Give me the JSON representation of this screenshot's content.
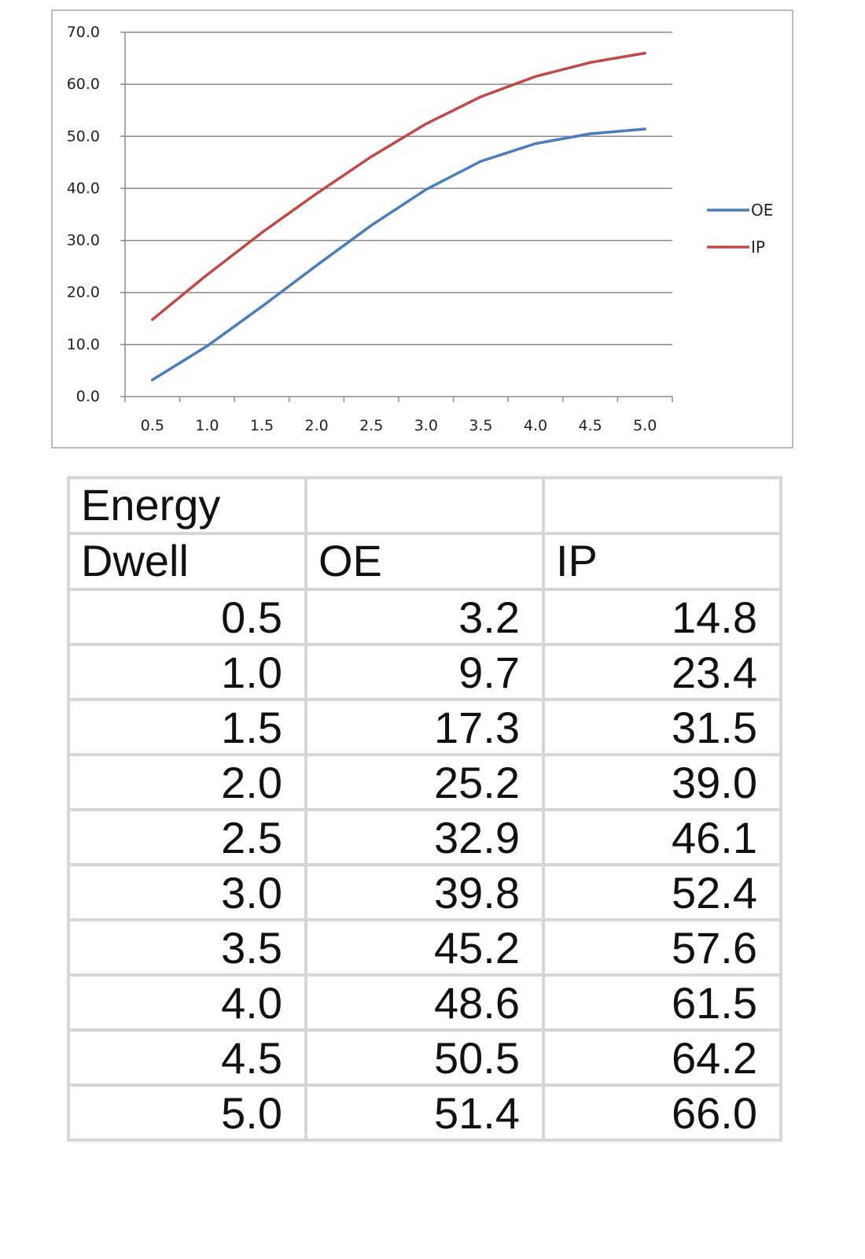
{
  "chart_data": {
    "type": "line",
    "x": [
      0.5,
      1.0,
      1.5,
      2.0,
      2.5,
      3.0,
      3.5,
      4.0,
      4.5,
      5.0
    ],
    "x_tick_labels": [
      "0.5",
      "1.0",
      "1.5",
      "2.0",
      "2.5",
      "3.0",
      "3.5",
      "4.0",
      "4.5",
      "5.0"
    ],
    "y_ticks": [
      0,
      10,
      20,
      30,
      40,
      50,
      60,
      70
    ],
    "y_tick_labels": [
      "0.0",
      "10.0",
      "20.0",
      "30.0",
      "40.0",
      "50.0",
      "60.0",
      "70.0"
    ],
    "ylim": [
      0,
      70
    ],
    "grid": true,
    "legend": "right",
    "series": [
      {
        "name": "OE",
        "color": "#4a7ebb",
        "values": [
          3.2,
          9.7,
          17.3,
          25.2,
          32.9,
          39.8,
          45.2,
          48.6,
          50.5,
          51.4
        ]
      },
      {
        "name": "IP",
        "color": "#be4b48",
        "values": [
          14.8,
          23.4,
          31.5,
          39.0,
          46.1,
          52.4,
          57.6,
          61.5,
          64.2,
          66.0
        ]
      }
    ]
  },
  "table": {
    "header_row1": [
      "Energy",
      "",
      ""
    ],
    "header_row2": [
      "Dwell",
      "OE",
      "IP"
    ],
    "rows": [
      [
        "0.5",
        "3.2",
        "14.8"
      ],
      [
        "1.0",
        "9.7",
        "23.4"
      ],
      [
        "1.5",
        "17.3",
        "31.5"
      ],
      [
        "2.0",
        "25.2",
        "39.0"
      ],
      [
        "2.5",
        "32.9",
        "46.1"
      ],
      [
        "3.0",
        "39.8",
        "52.4"
      ],
      [
        "3.5",
        "45.2",
        "57.6"
      ],
      [
        "4.0",
        "48.6",
        "61.5"
      ],
      [
        "4.5",
        "50.5",
        "64.2"
      ],
      [
        "5.0",
        "51.4",
        "66.0"
      ]
    ]
  }
}
